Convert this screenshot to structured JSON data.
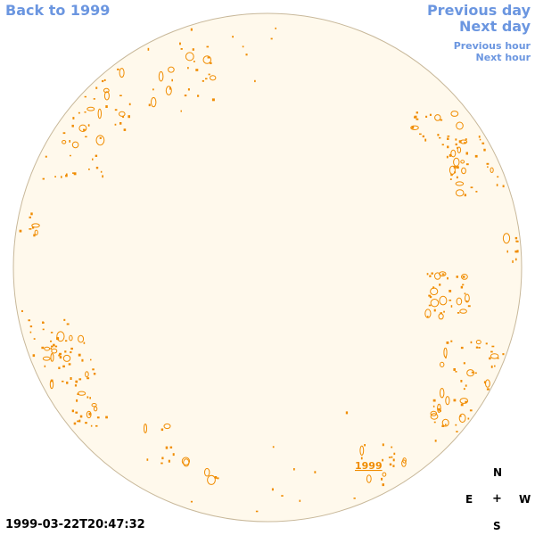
{
  "navigation": {
    "back_label": "Back to 1999",
    "previous_day_label": "Previous day",
    "next_day_label": "Next day",
    "previous_hour_label": "Previous hour",
    "next_hour_label": "Next hour"
  },
  "disk": {
    "year_label": "1999"
  },
  "timestamp": "1999-03-22T20:47:32",
  "compass": {
    "north": "N",
    "east": "E",
    "center": "+",
    "west": "W",
    "south": "S"
  },
  "colors": {
    "link": "#6b96e0",
    "disk_fill": "#fff9ec",
    "disk_outline": "#c8b89a",
    "feature": "#f08c00"
  }
}
